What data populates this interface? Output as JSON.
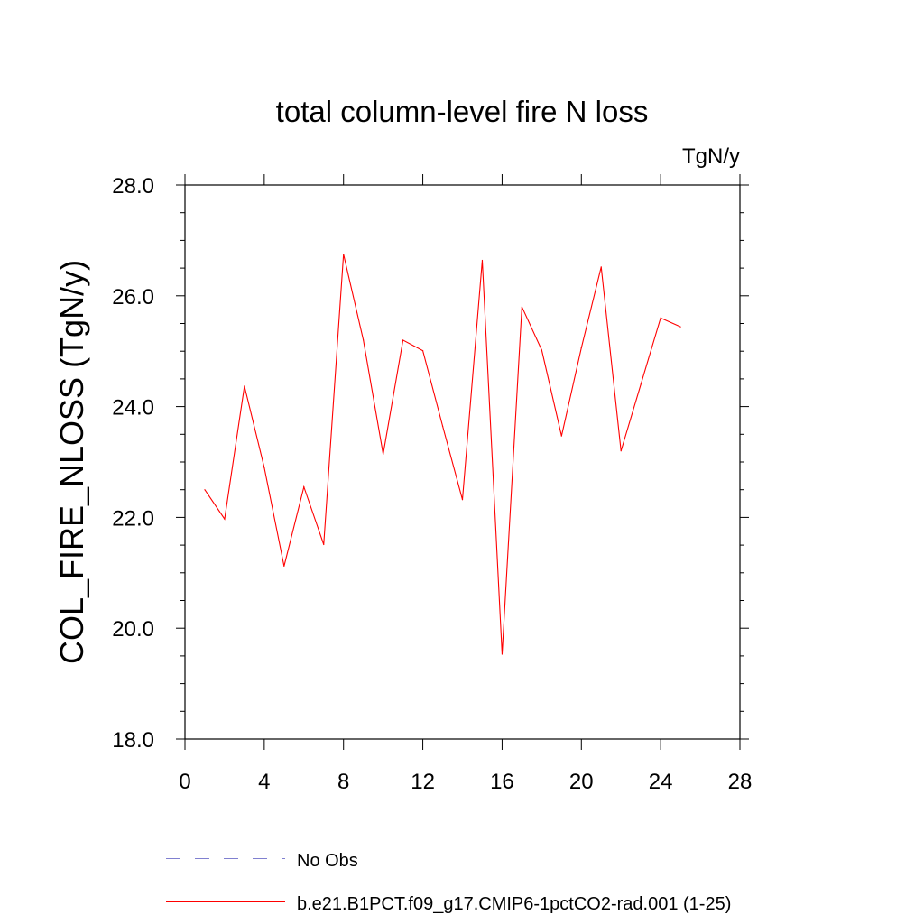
{
  "chart_data": {
    "type": "line",
    "title": "total column-level fire N loss",
    "units_label": "TgN/y",
    "ylabel": "COL_FIRE_NLOSS  (TgN/y)",
    "xlabel": "",
    "xlim": [
      0,
      28
    ],
    "ylim": [
      18,
      28
    ],
    "x_ticks": [
      "0",
      "4",
      "8",
      "12",
      "16",
      "20",
      "24",
      "28"
    ],
    "y_ticks": [
      "18.0",
      "20.0",
      "22.0",
      "24.0",
      "26.0",
      "28.0"
    ],
    "x_tick_values": [
      0,
      4,
      8,
      12,
      16,
      20,
      24,
      28
    ],
    "y_tick_values": [
      18,
      20,
      22,
      24,
      26,
      28
    ],
    "grid": false,
    "legend_position": "bottom",
    "series": [
      {
        "name": "b.e21.B1PCT.f09_g17.CMIP6-1pctCO2-rad.001 (1-25)",
        "color": "#ff0000",
        "style": "solid",
        "x": [
          1,
          2,
          3,
          4,
          5,
          6,
          7,
          8,
          9,
          10,
          11,
          12,
          13,
          14,
          15,
          16,
          17,
          18,
          19,
          20,
          21,
          22,
          23,
          24,
          25
        ],
        "y": [
          22.5,
          21.97,
          24.37,
          22.9,
          21.12,
          22.55,
          21.51,
          26.75,
          25.2,
          23.14,
          25.2,
          25.01,
          23.65,
          22.32,
          26.64,
          19.53,
          25.8,
          25.02,
          23.47,
          25.06,
          26.52,
          23.2,
          24.4,
          25.6,
          25.44
        ]
      }
    ],
    "legend": [
      {
        "label": "No Obs",
        "color": "#8080d0",
        "style": "dashed"
      },
      {
        "label": "b.e21.B1PCT.f09_g17.CMIP6-1pctCO2-rad.001 (1-25)",
        "color": "#ff0000",
        "style": "solid"
      }
    ]
  }
}
